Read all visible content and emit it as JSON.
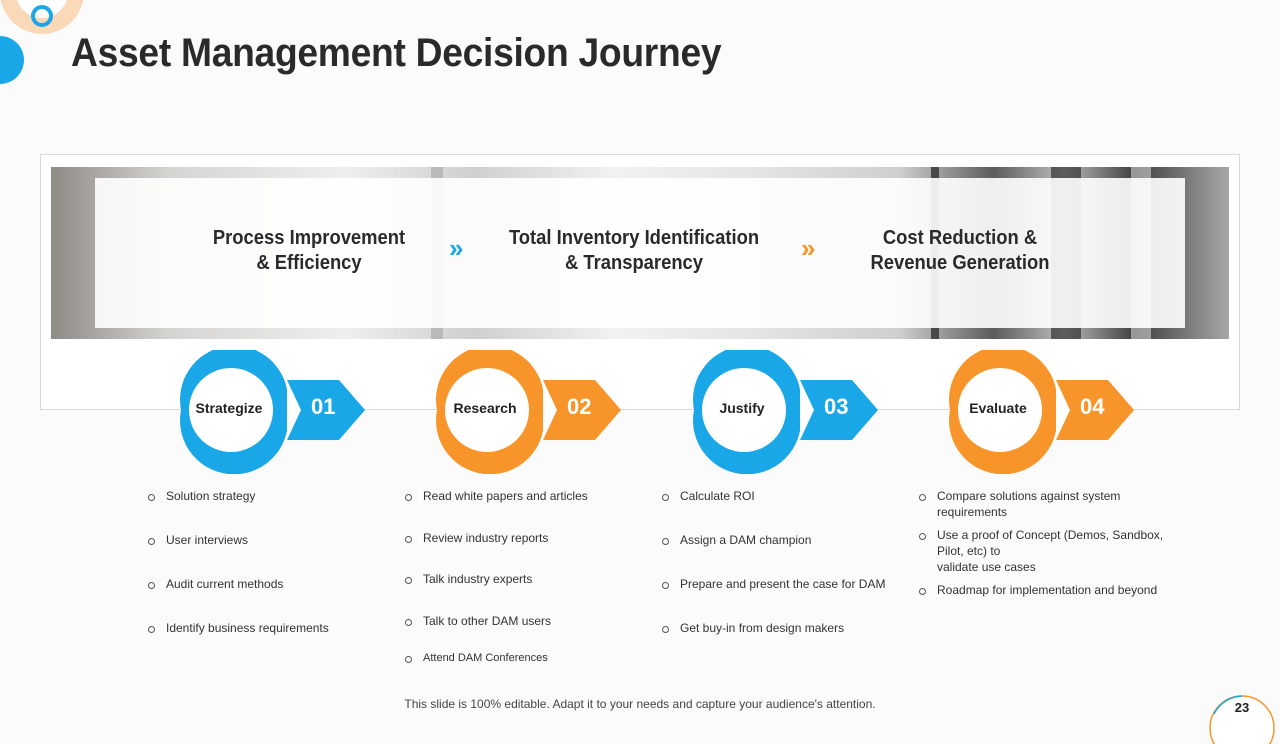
{
  "title": "Asset Management Decision Journey",
  "themes": [
    {
      "line1": "Process Improvement",
      "line2": "& Efficiency"
    },
    {
      "line1": "Total Inventory Identification",
      "line2": "& Transparency"
    },
    {
      "line1": "Cost Reduction &",
      "line2": "Revenue Generation"
    }
  ],
  "chevron_glyph": "»",
  "colors": {
    "blue": "#1aa7e8",
    "orange": "#f7952a"
  },
  "steps": [
    {
      "label": "Strategize",
      "number": "01",
      "color": "blue",
      "bullets": [
        "Solution strategy",
        "User interviews",
        "Audit current methods",
        "Identify business requirements"
      ]
    },
    {
      "label": "Research",
      "number": "02",
      "color": "orange",
      "bullets": [
        "Read white papers and articles",
        "Review industry reports",
        "Talk industry experts",
        "Talk to other DAM users",
        "Attend DAM Conferences"
      ]
    },
    {
      "label": "Justify",
      "number": "03",
      "color": "blue",
      "bullets": [
        "Calculate ROI",
        "Assign a DAM champion",
        "Prepare and present the case for DAM",
        "Get buy-in from design makers"
      ]
    },
    {
      "label": "Evaluate",
      "number": "04",
      "color": "orange",
      "bullets": [
        "Compare solutions against system requirements",
        "Use a proof of Concept (Demos, Sandbox, Pilot, etc) to",
        "Roadmap for implementation and beyond"
      ],
      "bullet2_extra": "validate use cases"
    }
  ],
  "footer": "This slide is 100% editable. Adapt it to your needs and capture your audience's attention.",
  "page_number": "23"
}
